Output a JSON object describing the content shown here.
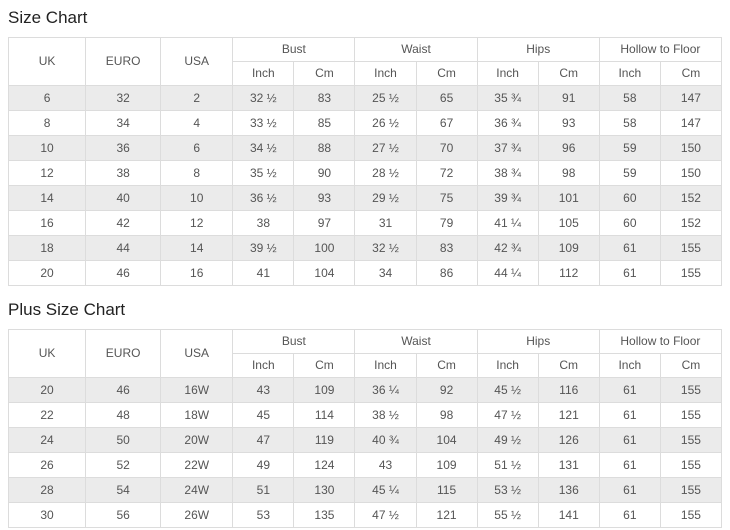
{
  "colors": {
    "border": "#dcdcdc",
    "row_alt_background": "#ebebeb",
    "row_background": "#ffffff",
    "text": "#555555",
    "title_text": "#222222"
  },
  "size_chart": {
    "title": "Size Chart",
    "base_columns": [
      "UK",
      "EURO",
      "USA"
    ],
    "column_groups": [
      "Bust",
      "Waist",
      "Hips",
      "Hollow to Floor"
    ],
    "sub_columns": [
      "Inch",
      "Cm"
    ],
    "rows": [
      [
        "6",
        "32",
        "2",
        "32 ½",
        "83",
        "25 ½",
        "65",
        "35 ¾",
        "91",
        "58",
        "147"
      ],
      [
        "8",
        "34",
        "4",
        "33 ½",
        "85",
        "26 ½",
        "67",
        "36 ¾",
        "93",
        "58",
        "147"
      ],
      [
        "10",
        "36",
        "6",
        "34 ½",
        "88",
        "27 ½",
        "70",
        "37 ¾",
        "96",
        "59",
        "150"
      ],
      [
        "12",
        "38",
        "8",
        "35 ½",
        "90",
        "28 ½",
        "72",
        "38 ¾",
        "98",
        "59",
        "150"
      ],
      [
        "14",
        "40",
        "10",
        "36 ½",
        "93",
        "29 ½",
        "75",
        "39 ¾",
        "101",
        "60",
        "152"
      ],
      [
        "16",
        "42",
        "12",
        "38",
        "97",
        "31",
        "79",
        "41 ¼",
        "105",
        "60",
        "152"
      ],
      [
        "18",
        "44",
        "14",
        "39 ½",
        "100",
        "32 ½",
        "83",
        "42 ¾",
        "109",
        "61",
        "155"
      ],
      [
        "20",
        "46",
        "16",
        "41",
        "104",
        "34",
        "86",
        "44 ¼",
        "112",
        "61",
        "155"
      ]
    ]
  },
  "plus_size_chart": {
    "title": "Plus Size Chart",
    "base_columns": [
      "UK",
      "EURO",
      "USA"
    ],
    "column_groups": [
      "Bust",
      "Waist",
      "Hips",
      "Hollow to Floor"
    ],
    "sub_columns": [
      "Inch",
      "Cm"
    ],
    "rows": [
      [
        "20",
        "46",
        "16W",
        "43",
        "109",
        "36 ¼",
        "92",
        "45 ½",
        "116",
        "61",
        "155"
      ],
      [
        "22",
        "48",
        "18W",
        "45",
        "114",
        "38 ½",
        "98",
        "47 ½",
        "121",
        "61",
        "155"
      ],
      [
        "24",
        "50",
        "20W",
        "47",
        "119",
        "40 ¾",
        "104",
        "49 ½",
        "126",
        "61",
        "155"
      ],
      [
        "26",
        "52",
        "22W",
        "49",
        "124",
        "43",
        "109",
        "51 ½",
        "131",
        "61",
        "155"
      ],
      [
        "28",
        "54",
        "24W",
        "51",
        "130",
        "45 ¼",
        "115",
        "53 ½",
        "136",
        "61",
        "155"
      ],
      [
        "30",
        "56",
        "26W",
        "53",
        "135",
        "47 ½",
        "121",
        "55 ½",
        "141",
        "61",
        "155"
      ]
    ]
  }
}
